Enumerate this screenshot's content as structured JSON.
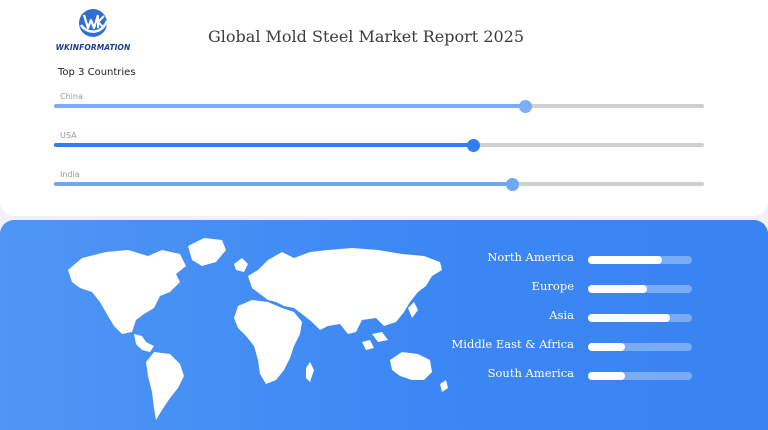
{
  "brand": {
    "name": "WKINFORMATION",
    "colors": {
      "primary": "#1d3f8f",
      "accent": "#3a86f3"
    }
  },
  "header": {
    "title": "Global Mold Steel Market Report 2025"
  },
  "top_countries": {
    "title": "Top 3 Countries"
  },
  "bottom_panel": {
    "map": "world-map"
  },
  "chart_data": [
    {
      "type": "bar",
      "orientation": "horizontal",
      "title": "Top 3 Countries",
      "categories": [
        "China",
        "USA",
        "India"
      ],
      "values": [
        0.725,
        0.645,
        0.705
      ],
      "scale": [
        0,
        1
      ],
      "colors": [
        "#7aaef6",
        "#2f7ff2",
        "#6ea8f5"
      ],
      "grid": false
    },
    {
      "type": "bar",
      "orientation": "horizontal",
      "title": "",
      "categories": [
        "North America",
        "Europe",
        "Asia",
        "Middle East & Africa",
        "South America"
      ],
      "values": [
        0.71,
        0.57,
        0.79,
        0.36,
        0.36
      ],
      "scale": [
        0,
        1
      ],
      "bar_color": "#ffffff",
      "grid": false
    }
  ]
}
